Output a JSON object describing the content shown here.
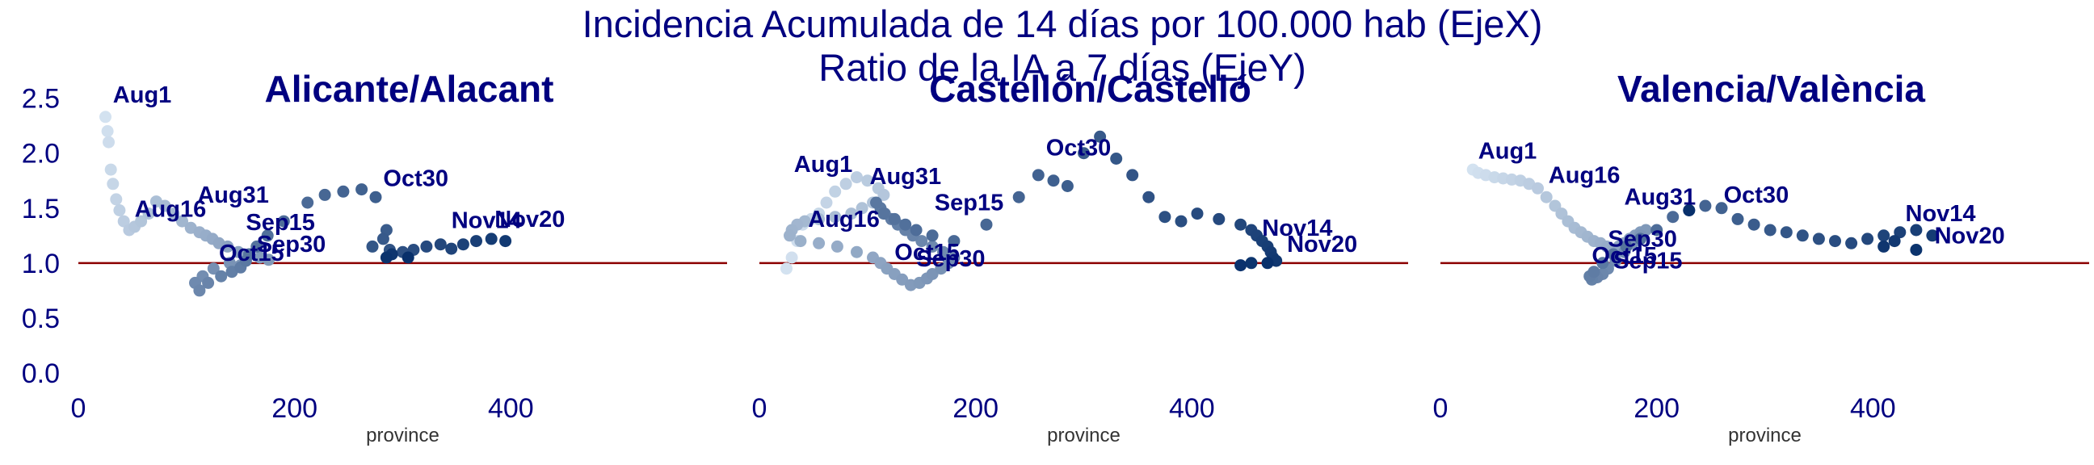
{
  "suptitle": [
    "Incidencia Acumulada de 14 días por 100.000 hab (EjeX)",
    "Ratio de la IA a 7 días (EjeY)"
  ],
  "colors": {
    "text": "#000080",
    "refline": "#8b0000",
    "xlabel": "#333333",
    "cmap_light": "#deebf7",
    "cmap_dark": "#08306b"
  },
  "chart_data": [
    {
      "type": "scatter",
      "title": "Alicante/Alacant",
      "xlabel": "province",
      "ylabel": "",
      "xlim": [
        0,
        600
      ],
      "ylim": [
        0,
        2.6
      ],
      "xticks": [
        0,
        200,
        400
      ],
      "xtick_labels": [
        "0",
        "200",
        "400"
      ],
      "yticks": [
        0,
        0.5,
        1,
        1.5,
        2,
        2.5
      ],
      "ytick_labels": [
        "0.0",
        "0.5",
        "1.0",
        "1.5",
        "2.0",
        "2.5"
      ],
      "hline": 1.0,
      "grid": false,
      "color_encoding": "date order, light to dark blue",
      "x": [
        25,
        27,
        28,
        30,
        32,
        35,
        38,
        42,
        47,
        52,
        58,
        65,
        72,
        80,
        88,
        96,
        104,
        112,
        118,
        124,
        130,
        138,
        148,
        158,
        168,
        176,
        150,
        140,
        125,
        115,
        108,
        112,
        120,
        132,
        142,
        150,
        155,
        158,
        165,
        175,
        190,
        212,
        228,
        245,
        262,
        275,
        285,
        282,
        272,
        288,
        300,
        310,
        322,
        335,
        345,
        356,
        368,
        382,
        395,
        290,
        285,
        305
      ],
      "y": [
        2.33,
        2.2,
        2.1,
        1.85,
        1.72,
        1.58,
        1.48,
        1.38,
        1.3,
        1.33,
        1.38,
        1.45,
        1.56,
        1.52,
        1.45,
        1.38,
        1.32,
        1.28,
        1.25,
        1.22,
        1.18,
        1.15,
        1.1,
        1.08,
        1.05,
        1.03,
        0.98,
        1.0,
        0.95,
        0.88,
        0.82,
        0.75,
        0.82,
        0.88,
        0.92,
        0.96,
        1.02,
        1.08,
        1.15,
        1.25,
        1.38,
        1.55,
        1.62,
        1.65,
        1.67,
        1.6,
        1.3,
        1.22,
        1.15,
        1.12,
        1.1,
        1.12,
        1.15,
        1.17,
        1.13,
        1.17,
        1.2,
        1.22,
        1.2,
        1.08,
        1.05,
        1.05
      ],
      "annotations": [
        {
          "text": "Aug1",
          "x": 32,
          "y": 2.46
        },
        {
          "text": "Aug16",
          "x": 52,
          "y": 1.42
        },
        {
          "text": "Aug31",
          "x": 110,
          "y": 1.55
        },
        {
          "text": "Sep15",
          "x": 155,
          "y": 1.3
        },
        {
          "text": "Sep30",
          "x": 165,
          "y": 1.1
        },
        {
          "text": "Oct15",
          "x": 130,
          "y": 1.02
        },
        {
          "text": "Oct30",
          "x": 282,
          "y": 1.7
        },
        {
          "text": "Nov14",
          "x": 345,
          "y": 1.32
        },
        {
          "text": "Nov20",
          "x": 385,
          "y": 1.33
        }
      ]
    },
    {
      "type": "scatter",
      "title": "Castellón/Castelló",
      "xlabel": "province",
      "ylabel": "",
      "xlim": [
        0,
        600
      ],
      "ylim": [
        0,
        2.6
      ],
      "xticks": [
        0,
        200,
        400
      ],
      "xtick_labels": [
        "0",
        "200",
        "400"
      ],
      "yticks": [],
      "hline": 1.0,
      "grid": false,
      "color_encoding": "date order, light to dark blue",
      "x": [
        25,
        30,
        35,
        40,
        48,
        55,
        62,
        70,
        80,
        90,
        100,
        110,
        115,
        105,
        95,
        85,
        70,
        55,
        42,
        35,
        30,
        28,
        38,
        55,
        72,
        90,
        105,
        112,
        118,
        125,
        132,
        140,
        148,
        155,
        160,
        168,
        175,
        180,
        170,
        160,
        150,
        142,
        135,
        128,
        122,
        116,
        112,
        108,
        115,
        125,
        135,
        145,
        160,
        180,
        210,
        240,
        258,
        272,
        285,
        300,
        315,
        330,
        345,
        360,
        375,
        390,
        405,
        425,
        445,
        455,
        460,
        465,
        470,
        473,
        475,
        478,
        455,
        445,
        470
      ],
      "y": [
        0.95,
        1.05,
        1.2,
        1.35,
        1.4,
        1.45,
        1.55,
        1.65,
        1.72,
        1.78,
        1.75,
        1.68,
        1.62,
        1.55,
        1.5,
        1.45,
        1.42,
        1.4,
        1.38,
        1.35,
        1.3,
        1.25,
        1.2,
        1.18,
        1.15,
        1.1,
        1.05,
        1.0,
        0.95,
        0.9,
        0.85,
        0.8,
        0.82,
        0.86,
        0.9,
        0.95,
        1.0,
        1.05,
        1.1,
        1.15,
        1.2,
        1.25,
        1.3,
        1.35,
        1.4,
        1.45,
        1.5,
        1.55,
        1.45,
        1.4,
        1.35,
        1.3,
        1.25,
        1.2,
        1.35,
        1.6,
        1.8,
        1.75,
        1.7,
        2.0,
        2.15,
        1.95,
        1.8,
        1.6,
        1.42,
        1.38,
        1.45,
        1.4,
        1.35,
        1.3,
        1.25,
        1.2,
        1.15,
        1.1,
        1.05,
        1.02,
        1.0,
        0.98,
        1.0
      ],
      "annotations": [
        {
          "text": "Aug1",
          "x": 32,
          "y": 1.83
        },
        {
          "text": "Aug16",
          "x": 45,
          "y": 1.33
        },
        {
          "text": "Aug31",
          "x": 102,
          "y": 1.72
        },
        {
          "text": "Sep15",
          "x": 162,
          "y": 1.48
        },
        {
          "text": "Sep30",
          "x": 145,
          "y": 0.97
        },
        {
          "text": "Oct15",
          "x": 125,
          "y": 1.03
        },
        {
          "text": "Oct30",
          "x": 265,
          "y": 1.98
        },
        {
          "text": "Nov14",
          "x": 465,
          "y": 1.25
        },
        {
          "text": "Nov20",
          "x": 488,
          "y": 1.1
        }
      ]
    },
    {
      "type": "scatter",
      "title": "Valencia/València",
      "xlabel": "province",
      "ylabel": "",
      "xlim": [
        0,
        600
      ],
      "ylim": [
        0,
        2.6
      ],
      "xticks": [
        0,
        200,
        400
      ],
      "xtick_labels": [
        "0",
        "200",
        "400"
      ],
      "yticks": [],
      "hline": 1.0,
      "grid": false,
      "color_encoding": "date order, light to dark blue",
      "x": [
        30,
        35,
        42,
        50,
        58,
        66,
        74,
        82,
        90,
        98,
        106,
        112,
        118,
        124,
        130,
        136,
        142,
        148,
        154,
        160,
        165,
        170,
        175,
        180,
        185,
        190,
        185,
        178,
        170,
        162,
        155,
        150,
        145,
        140,
        138,
        142,
        150,
        160,
        172,
        185,
        200,
        215,
        230,
        245,
        260,
        275,
        290,
        305,
        320,
        335,
        350,
        365,
        380,
        395,
        410,
        425,
        440,
        455,
        420,
        410,
        440,
        230
      ],
      "y": [
        1.85,
        1.82,
        1.8,
        1.78,
        1.77,
        1.76,
        1.75,
        1.72,
        1.68,
        1.6,
        1.52,
        1.45,
        1.38,
        1.32,
        1.28,
        1.24,
        1.2,
        1.18,
        1.15,
        1.12,
        1.15,
        1.18,
        1.22,
        1.25,
        1.28,
        1.3,
        1.25,
        1.18,
        1.1,
        1.02,
        0.95,
        0.9,
        0.87,
        0.85,
        0.88,
        0.92,
        1.0,
        1.08,
        1.15,
        1.22,
        1.3,
        1.42,
        1.48,
        1.52,
        1.5,
        1.4,
        1.35,
        1.3,
        1.28,
        1.25,
        1.22,
        1.2,
        1.18,
        1.22,
        1.25,
        1.28,
        1.3,
        1.25,
        1.2,
        1.15,
        1.12,
        1.48
      ],
      "annotations": [
        {
          "text": "Aug1",
          "x": 35,
          "y": 1.95
        },
        {
          "text": "Aug16",
          "x": 100,
          "y": 1.73
        },
        {
          "text": "Aug31",
          "x": 170,
          "y": 1.53
        },
        {
          "text": "Sep15",
          "x": 160,
          "y": 0.95
        },
        {
          "text": "Sep30",
          "x": 155,
          "y": 1.15
        },
        {
          "text": "Oct15",
          "x": 140,
          "y": 1.0
        },
        {
          "text": "Oct30",
          "x": 262,
          "y": 1.55
        },
        {
          "text": "Nov14",
          "x": 430,
          "y": 1.38
        },
        {
          "text": "Nov20",
          "x": 457,
          "y": 1.18
        }
      ]
    }
  ]
}
